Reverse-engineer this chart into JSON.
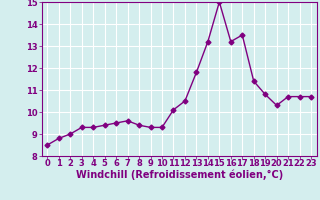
{
  "x": [
    0,
    1,
    2,
    3,
    4,
    5,
    6,
    7,
    8,
    9,
    10,
    11,
    12,
    13,
    14,
    15,
    16,
    17,
    18,
    19,
    20,
    21,
    22,
    23
  ],
  "y": [
    8.5,
    8.8,
    9.0,
    9.3,
    9.3,
    9.4,
    9.5,
    9.6,
    9.4,
    9.3,
    9.3,
    10.1,
    10.5,
    11.8,
    13.2,
    15.0,
    13.2,
    13.5,
    11.4,
    10.8,
    10.3,
    10.7,
    10.7,
    10.7
  ],
  "line_color": "#800080",
  "marker": "D",
  "marker_size": 2.5,
  "xlabel": "Windchill (Refroidissement éolien,°C)",
  "ylabel": "",
  "xlim": [
    -0.5,
    23.5
  ],
  "ylim": [
    8,
    15
  ],
  "yticks": [
    8,
    9,
    10,
    11,
    12,
    13,
    14,
    15
  ],
  "xticks": [
    0,
    1,
    2,
    3,
    4,
    5,
    6,
    7,
    8,
    9,
    10,
    11,
    12,
    13,
    14,
    15,
    16,
    17,
    18,
    19,
    20,
    21,
    22,
    23
  ],
  "bg_color": "#d4eeee",
  "grid_color": "#ffffff",
  "tick_color": "#800080",
  "label_color": "#800080",
  "label_fontsize": 7.0,
  "tick_fontsize": 6.0,
  "line_width": 1.0
}
